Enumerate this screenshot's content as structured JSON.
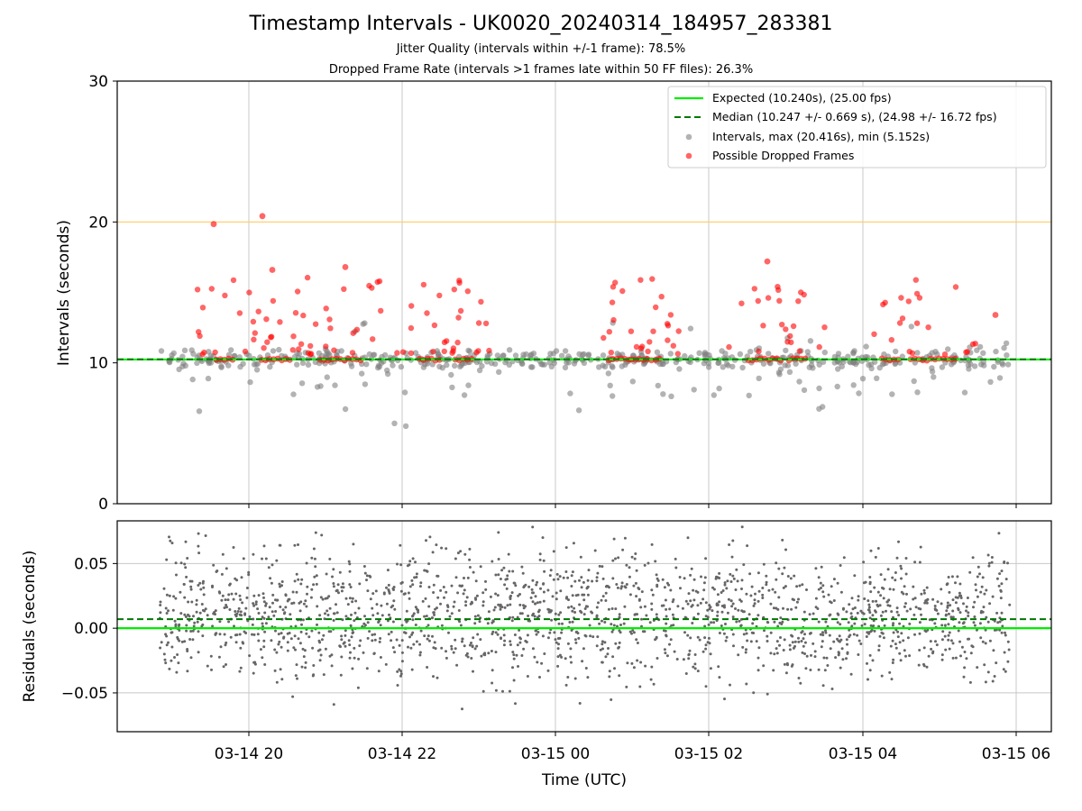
{
  "chart_data": [
    {
      "type": "scatter",
      "title": "Timestamp Intervals - UK0020_20240314_184957_283381",
      "subtitle_1": "Jitter Quality (intervals within +/-1 frame): 78.5%",
      "subtitle_2": "Dropped Frame Rate (intervals >1 frames late within 50 FF files): 26.3%",
      "ylabel": "Intervals (seconds)",
      "ylim": [
        0,
        30
      ],
      "yticks": [
        "0",
        "10",
        "20",
        "30"
      ],
      "grid": "vertical",
      "legend_position": "top-right",
      "reference_lines": {
        "expected": 10.24,
        "median": 10.247,
        "threshold": 20.0
      },
      "series": [
        {
          "name": "Expected (10.240s), (25.00 fps)",
          "kind": "line",
          "color": "#00ee00",
          "value": 10.24
        },
        {
          "name": "Median (10.247 +/- 0.669 s), (24.98 +/- 16.72 fps)",
          "kind": "dashed-line",
          "color": "#007700",
          "value": 10.247
        },
        {
          "name": "Intervals, max (20.416s), min (5.152s)",
          "kind": "scatter",
          "color": "#808080",
          "max": 20.416,
          "min": 5.152
        },
        {
          "name": "Possible Dropped Frames",
          "kind": "scatter",
          "color": "#ff0000"
        }
      ]
    },
    {
      "type": "scatter",
      "xlabel": "Time (UTC)",
      "ylabel": "Residuals (seconds)",
      "ylim": [
        -0.08,
        0.083
      ],
      "yticks": [
        "0.05",
        "0.00",
        "−0.05"
      ],
      "xticks": [
        "03-14 20",
        "03-14 22",
        "03-15 00",
        "03-15 02",
        "03-15 04",
        "03-15 06"
      ],
      "grid": "both",
      "reference_lines": {
        "zero": 0.0,
        "median_offset": 0.007
      }
    }
  ],
  "colors": {
    "expected": "#00ee00",
    "median": "#007700",
    "intervals": "#808080",
    "dropped": "#ff0000",
    "threshold": "#ffcc66",
    "grid": "#c8c8c8"
  }
}
